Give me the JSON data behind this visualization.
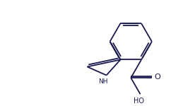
{
  "line_color": "#1a1a4e",
  "bg_color": "#ffffff",
  "nh_label": "NH",
  "ho_label": "HO",
  "o_label": "O",
  "figsize": [
    2.59,
    1.5
  ],
  "dpi": 100
}
